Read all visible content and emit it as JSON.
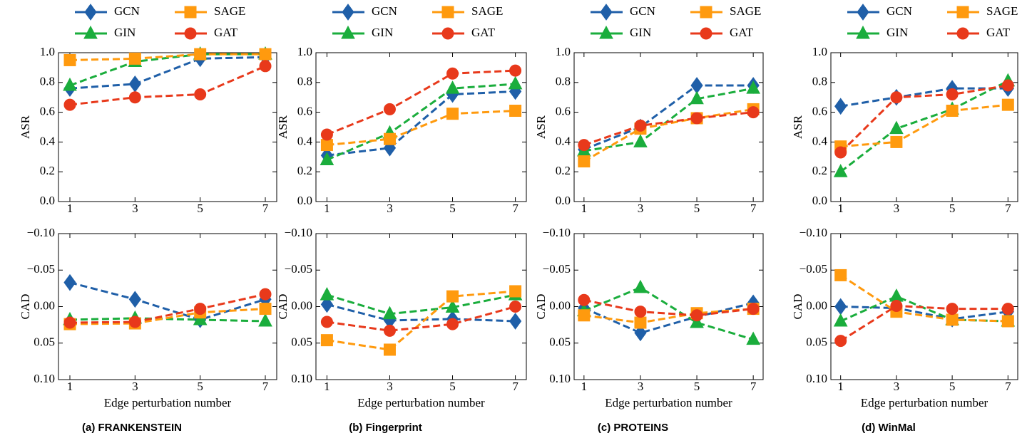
{
  "chart_data": [
    {
      "type": "line",
      "ylabel": "ASR",
      "x": [
        1,
        3,
        5,
        7
      ],
      "xlim": [
        0.65,
        7.35
      ],
      "xticks": [
        1,
        3,
        5,
        7
      ],
      "ylim": [
        0,
        1
      ],
      "yticks": [
        {
          "value": 0,
          "label": "0.0"
        },
        {
          "value": 0.2,
          "label": "0.2"
        },
        {
          "value": 0.4,
          "label": "0.4"
        },
        {
          "value": 0.6,
          "label": "0.6"
        },
        {
          "value": 0.8,
          "label": "0.8"
        },
        {
          "value": 1,
          "label": "1.0"
        }
      ],
      "series": [
        {
          "name": "GCN",
          "color": "#1f5fa8",
          "marker": "diamond",
          "values": [
            0.76,
            0.79,
            0.96,
            0.97
          ]
        },
        {
          "name": "GIN",
          "color": "#1aad3c",
          "marker": "triangle",
          "values": [
            0.78,
            0.94,
            0.99,
            0.99
          ]
        },
        {
          "name": "SAGE",
          "color": "#ff9a0e",
          "marker": "square",
          "values": [
            0.95,
            0.96,
            0.99,
            0.99
          ]
        },
        {
          "name": "GAT",
          "color": "#e8391b",
          "marker": "circle",
          "values": [
            0.65,
            0.7,
            0.72,
            0.91
          ]
        }
      ]
    },
    {
      "type": "line",
      "ylabel": "ASR",
      "x": [
        1,
        3,
        5,
        7
      ],
      "xlim": [
        0.65,
        7.35
      ],
      "xticks": [
        1,
        3,
        5,
        7
      ],
      "ylim": [
        0,
        1
      ],
      "yticks": [
        {
          "value": 0,
          "label": "0.0"
        },
        {
          "value": 0.2,
          "label": "0.2"
        },
        {
          "value": 0.4,
          "label": "0.4"
        },
        {
          "value": 0.6,
          "label": "0.6"
        },
        {
          "value": 0.8,
          "label": "0.8"
        },
        {
          "value": 1,
          "label": "1.0"
        }
      ],
      "series": [
        {
          "name": "GCN",
          "color": "#1f5fa8",
          "marker": "diamond",
          "values": [
            0.31,
            0.36,
            0.72,
            0.74
          ]
        },
        {
          "name": "GIN",
          "color": "#1aad3c",
          "marker": "triangle",
          "values": [
            0.28,
            0.46,
            0.76,
            0.79
          ]
        },
        {
          "name": "SAGE",
          "color": "#ff9a0e",
          "marker": "square",
          "values": [
            0.38,
            0.42,
            0.59,
            0.61
          ]
        },
        {
          "name": "GAT",
          "color": "#e8391b",
          "marker": "circle",
          "values": [
            0.45,
            0.62,
            0.86,
            0.88
          ]
        }
      ]
    },
    {
      "type": "line",
      "ylabel": "ASR",
      "x": [
        1,
        3,
        5,
        7
      ],
      "xlim": [
        0.65,
        7.35
      ],
      "xticks": [
        1,
        3,
        5,
        7
      ],
      "ylim": [
        0,
        1
      ],
      "yticks": [
        {
          "value": 0,
          "label": "0.0"
        },
        {
          "value": 0.2,
          "label": "0.2"
        },
        {
          "value": 0.4,
          "label": "0.4"
        },
        {
          "value": 0.6,
          "label": "0.6"
        },
        {
          "value": 0.8,
          "label": "0.8"
        },
        {
          "value": 1,
          "label": "1.0"
        }
      ],
      "series": [
        {
          "name": "GCN",
          "color": "#1f5fa8",
          "marker": "diamond",
          "values": [
            0.35,
            0.5,
            0.78,
            0.78
          ]
        },
        {
          "name": "GIN",
          "color": "#1aad3c",
          "marker": "triangle",
          "values": [
            0.34,
            0.4,
            0.69,
            0.76
          ]
        },
        {
          "name": "SAGE",
          "color": "#ff9a0e",
          "marker": "square",
          "values": [
            0.27,
            0.49,
            0.56,
            0.62
          ]
        },
        {
          "name": "GAT",
          "color": "#e8391b",
          "marker": "circle",
          "values": [
            0.38,
            0.51,
            0.56,
            0.6
          ]
        }
      ]
    },
    {
      "type": "line",
      "ylabel": "ASR",
      "x": [
        1,
        3,
        5,
        7
      ],
      "xlim": [
        0.65,
        7.35
      ],
      "xticks": [
        1,
        3,
        5,
        7
      ],
      "ylim": [
        0,
        1
      ],
      "yticks": [
        {
          "value": 0,
          "label": "0.0"
        },
        {
          "value": 0.2,
          "label": "0.2"
        },
        {
          "value": 0.4,
          "label": "0.4"
        },
        {
          "value": 0.6,
          "label": "0.6"
        },
        {
          "value": 0.8,
          "label": "0.8"
        },
        {
          "value": 1,
          "label": "1.0"
        }
      ],
      "series": [
        {
          "name": "GCN",
          "color": "#1f5fa8",
          "marker": "diamond",
          "values": [
            0.64,
            0.7,
            0.76,
            0.76
          ]
        },
        {
          "name": "GIN",
          "color": "#1aad3c",
          "marker": "triangle",
          "values": [
            0.2,
            0.49,
            0.62,
            0.81
          ]
        },
        {
          "name": "SAGE",
          "color": "#ff9a0e",
          "marker": "square",
          "values": [
            0.37,
            0.4,
            0.61,
            0.65
          ]
        },
        {
          "name": "GAT",
          "color": "#e8391b",
          "marker": "circle",
          "values": [
            0.33,
            0.7,
            0.72,
            0.78
          ]
        }
      ]
    },
    {
      "type": "line",
      "ylabel": "CAD",
      "xlabel": "Edge perturbation number",
      "caption": "(a) FRANKENSTEIN",
      "x": [
        1,
        3,
        5,
        7
      ],
      "xlim": [
        0.65,
        7.35
      ],
      "xticks": [
        1,
        3,
        5,
        7
      ],
      "ylim": [
        -0.1,
        0.1
      ],
      "y_inverted": true,
      "yticks": [
        {
          "value": -0.1,
          "label": "−0.10"
        },
        {
          "value": -0.05,
          "label": "−0.05"
        },
        {
          "value": 0,
          "label": "0.00"
        },
        {
          "value": 0.05,
          "label": "0.05"
        },
        {
          "value": 0.1,
          "label": "0.10"
        }
      ],
      "series": [
        {
          "name": "GCN",
          "color": "#1f5fa8",
          "marker": "diamond",
          "values": [
            -0.033,
            -0.01,
            0.018,
            -0.01
          ]
        },
        {
          "name": "GIN",
          "color": "#1aad3c",
          "marker": "triangle",
          "values": [
            0.018,
            0.016,
            0.018,
            0.02
          ]
        },
        {
          "name": "SAGE",
          "color": "#ff9a0e",
          "marker": "square",
          "values": [
            0.024,
            0.023,
            0.008,
            0.003
          ]
        },
        {
          "name": "GAT",
          "color": "#e8391b",
          "marker": "circle",
          "values": [
            0.022,
            0.021,
            0.003,
            -0.017
          ]
        }
      ]
    },
    {
      "type": "line",
      "ylabel": "CAD",
      "xlabel": "Edge perturbation number",
      "caption": "(b) Fingerprint",
      "x": [
        1,
        3,
        5,
        7
      ],
      "xlim": [
        0.65,
        7.35
      ],
      "xticks": [
        1,
        3,
        5,
        7
      ],
      "ylim": [
        -0.1,
        0.1
      ],
      "y_inverted": true,
      "yticks": [
        {
          "value": -0.1,
          "label": "−0.10"
        },
        {
          "value": -0.05,
          "label": "−0.05"
        },
        {
          "value": 0,
          "label": "0.00"
        },
        {
          "value": 0.05,
          "label": "0.05"
        },
        {
          "value": 0.1,
          "label": "0.10"
        }
      ],
      "series": [
        {
          "name": "GCN",
          "color": "#1f5fa8",
          "marker": "diamond",
          "values": [
            -0.003,
            0.019,
            0.017,
            0.02
          ]
        },
        {
          "name": "GIN",
          "color": "#1aad3c",
          "marker": "triangle",
          "values": [
            -0.016,
            0.01,
            0.001,
            -0.016
          ]
        },
        {
          "name": "SAGE",
          "color": "#ff9a0e",
          "marker": "square",
          "values": [
            0.046,
            0.059,
            -0.014,
            -0.021
          ]
        },
        {
          "name": "GAT",
          "color": "#e8391b",
          "marker": "circle",
          "values": [
            0.021,
            0.033,
            0.024,
            0.0
          ]
        }
      ]
    },
    {
      "type": "line",
      "ylabel": "CAD",
      "xlabel": "Edge perturbation number",
      "caption": "(c) PROTEINS",
      "x": [
        1,
        3,
        5,
        7
      ],
      "xlim": [
        0.65,
        7.35
      ],
      "xticks": [
        1,
        3,
        5,
        7
      ],
      "ylim": [
        -0.1,
        0.1
      ],
      "y_inverted": true,
      "yticks": [
        {
          "value": -0.1,
          "label": "−0.10"
        },
        {
          "value": -0.05,
          "label": "−0.05"
        },
        {
          "value": 0,
          "label": "0.00"
        },
        {
          "value": 0.05,
          "label": "0.05"
        },
        {
          "value": 0.1,
          "label": "0.10"
        }
      ],
      "series": [
        {
          "name": "GCN",
          "color": "#1f5fa8",
          "marker": "diamond",
          "values": [
            0.002,
            0.036,
            0.014,
            -0.005
          ]
        },
        {
          "name": "GIN",
          "color": "#1aad3c",
          "marker": "triangle",
          "values": [
            0.006,
            -0.026,
            0.022,
            0.045
          ]
        },
        {
          "name": "SAGE",
          "color": "#ff9a0e",
          "marker": "square",
          "values": [
            0.012,
            0.022,
            0.009,
            0.003
          ]
        },
        {
          "name": "GAT",
          "color": "#e8391b",
          "marker": "circle",
          "values": [
            -0.009,
            0.007,
            0.012,
            0.003
          ]
        }
      ]
    },
    {
      "type": "line",
      "ylabel": "CAD",
      "xlabel": "Edge perturbation number",
      "caption": "(d) WinMal",
      "x": [
        1,
        3,
        5,
        7
      ],
      "xlim": [
        0.65,
        7.35
      ],
      "xticks": [
        1,
        3,
        5,
        7
      ],
      "ylim": [
        -0.1,
        0.1
      ],
      "y_inverted": true,
      "yticks": [
        {
          "value": -0.1,
          "label": "−0.10"
        },
        {
          "value": -0.05,
          "label": "−0.05"
        },
        {
          "value": 0,
          "label": "0.00"
        },
        {
          "value": 0.05,
          "label": "0.05"
        },
        {
          "value": 0.1,
          "label": "0.10"
        }
      ],
      "series": [
        {
          "name": "GCN",
          "color": "#1f5fa8",
          "marker": "diamond",
          "values": [
            0.0,
            0.002,
            0.017,
            0.007
          ]
        },
        {
          "name": "GIN",
          "color": "#1aad3c",
          "marker": "triangle",
          "values": [
            0.02,
            -0.014,
            0.018,
            0.02
          ]
        },
        {
          "name": "SAGE",
          "color": "#ff9a0e",
          "marker": "square",
          "values": [
            -0.043,
            0.007,
            0.018,
            0.02
          ]
        },
        {
          "name": "GAT",
          "color": "#e8391b",
          "marker": "circle",
          "values": [
            0.047,
            -0.001,
            0.003,
            0.003
          ]
        }
      ]
    }
  ]
}
